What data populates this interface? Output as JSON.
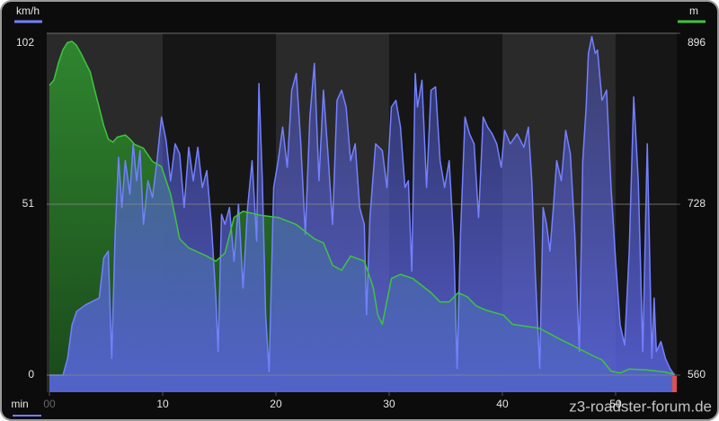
{
  "chart_data": {
    "type": "area",
    "x_label": "min",
    "watermark": "z3-roadster-forum.de",
    "xlim": [
      0,
      55.4
    ],
    "xticks": [
      {
        "value": 0,
        "label": "00"
      },
      10,
      20,
      30,
      40,
      50
    ],
    "ylim": [
      0,
      102
    ],
    "yticks": [
      0,
      51,
      102
    ],
    "y2lim": [
      560,
      896
    ],
    "y2ticks": [
      560,
      728,
      896
    ],
    "grid": true,
    "series": [
      {
        "name": "km/h",
        "color": "#7480ff",
        "x": [
          0.0,
          1.2,
          1.6,
          2.0,
          2.4,
          3.2,
          4.4,
          4.8,
          5.2,
          5.5,
          5.8,
          6.1,
          6.4,
          6.7,
          7.1,
          7.4,
          7.7,
          8.0,
          8.3,
          8.7,
          9.1,
          9.5,
          9.9,
          10.3,
          10.7,
          11.1,
          11.5,
          11.9,
          12.3,
          12.7,
          13.1,
          13.5,
          13.9,
          14.3,
          14.7,
          14.9,
          15.2,
          15.5,
          15.9,
          16.3,
          16.7,
          17.1,
          17.5,
          17.9,
          18.3,
          18.5,
          18.8,
          19.1,
          19.4,
          19.8,
          20.2,
          20.6,
          21.0,
          21.4,
          21.8,
          22.2,
          22.6,
          23.0,
          23.4,
          23.8,
          24.2,
          24.6,
          25.0,
          25.4,
          25.8,
          26.2,
          26.6,
          27.0,
          27.4,
          27.8,
          28.0,
          28.3,
          28.8,
          29.4,
          29.8,
          30.2,
          30.6,
          31.0,
          31.4,
          31.7,
          32.0,
          32.3,
          32.5,
          32.9,
          33.3,
          33.7,
          34.1,
          34.5,
          34.9,
          35.3,
          35.7,
          36.0,
          36.3,
          36.7,
          37.1,
          37.5,
          37.9,
          38.3,
          38.7,
          39.1,
          39.5,
          39.9,
          40.2,
          40.7,
          41.3,
          41.9,
          42.3,
          42.6,
          42.9,
          43.3,
          43.6,
          43.9,
          44.2,
          44.5,
          44.8,
          45.2,
          45.6,
          46.0,
          46.4,
          46.8,
          47.1,
          47.4,
          47.6,
          47.9,
          48.2,
          48.4,
          48.8,
          49.2,
          49.6,
          50.0,
          50.4,
          50.8,
          51.2,
          51.6,
          52.0,
          52.4,
          52.8,
          53.2,
          53.4,
          53.6,
          54.0,
          54.4,
          54.8,
          55.2
        ],
        "values": [
          0,
          0,
          5,
          15,
          19,
          21,
          23,
          35,
          37,
          5,
          42,
          65,
          50,
          64,
          54,
          69,
          58,
          67,
          45,
          58,
          53,
          64,
          77,
          70,
          58,
          69,
          66,
          50,
          68,
          58,
          68,
          56,
          61,
          45,
          23,
          7,
          48,
          45,
          50,
          34,
          51,
          26,
          50,
          64,
          40,
          87,
          58,
          18,
          1,
          56,
          64,
          74,
          62,
          85,
          90,
          69,
          42,
          77,
          93,
          58,
          85,
          66,
          45,
          82,
          85,
          80,
          64,
          69,
          50,
          45,
          18,
          47,
          69,
          67,
          56,
          80,
          82,
          74,
          56,
          58,
          31,
          90,
          80,
          88,
          56,
          85,
          86,
          64,
          56,
          64,
          40,
          2,
          42,
          77,
          72,
          69,
          47,
          77,
          74,
          72,
          69,
          62,
          73,
          69,
          72,
          68,
          74,
          58,
          31,
          2,
          50,
          45,
          37,
          50,
          64,
          58,
          73,
          66,
          42,
          7,
          64,
          80,
          96,
          101,
          96,
          97,
          82,
          85,
          56,
          34,
          15,
          9,
          37,
          83,
          58,
          7,
          69,
          5,
          23,
          7,
          10,
          5,
          2,
          0
        ]
      },
      {
        "name": "m",
        "color": "#3fc43f",
        "axis": "y2",
        "x": [
          0.0,
          0.4,
          0.8,
          1.2,
          1.6,
          2.0,
          2.4,
          2.8,
          3.2,
          3.6,
          4.0,
          4.4,
          4.8,
          5.2,
          5.6,
          6.0,
          6.7,
          7.1,
          7.5,
          8.3,
          9.1,
          9.9,
          10.7,
          11.5,
          12.3,
          13.1,
          13.9,
          14.7,
          15.5,
          16.3,
          17.1,
          18.7,
          20.2,
          21.8,
          23.4,
          24.2,
          25.0,
          25.8,
          26.6,
          27.8,
          28.6,
          29.0,
          29.4,
          30.2,
          31.0,
          32.1,
          32.9,
          33.7,
          34.5,
          35.3,
          36.1,
          36.9,
          37.7,
          38.5,
          40.1,
          40.9,
          43.3,
          44.8,
          46.4,
          48.0,
          48.8,
          49.6,
          50.4,
          51.2,
          52.8,
          54.4,
          55.2
        ],
        "values": [
          845,
          850,
          867,
          880,
          887,
          888,
          884,
          876,
          867,
          858,
          840,
          823,
          805,
          792,
          789,
          794,
          796,
          792,
          787,
          783,
          770,
          765,
          738,
          694,
          685,
          681,
          677,
          672,
          680,
          715,
          721,
          717,
          715,
          708,
          694,
          690,
          668,
          663,
          677,
          672,
          646,
          619,
          610,
          655,
          659,
          655,
          648,
          641,
          632,
          632,
          641,
          637,
          628,
          624,
          619,
          610,
          606,
          597,
          588,
          579,
          575,
          564,
          562,
          566,
          565,
          563,
          561
        ]
      }
    ]
  }
}
